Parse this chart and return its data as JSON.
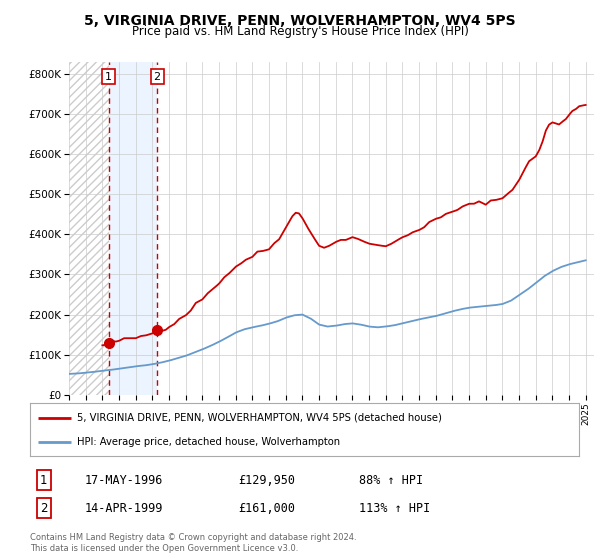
{
  "title": "5, VIRGINIA DRIVE, PENN, WOLVERHAMPTON, WV4 5PS",
  "subtitle": "Price paid vs. HM Land Registry's House Price Index (HPI)",
  "legend_line1": "5, VIRGINIA DRIVE, PENN, WOLVERHAMPTON, WV4 5PS (detached house)",
  "legend_line2": "HPI: Average price, detached house, Wolverhampton",
  "sale1_label": "1",
  "sale1_date": "17-MAY-1996",
  "sale1_price": "£129,950",
  "sale1_hpi": "88% ↑ HPI",
  "sale1_year": 1996.38,
  "sale1_value": 129950,
  "sale2_label": "2",
  "sale2_date": "14-APR-1999",
  "sale2_price": "£161,000",
  "sale2_hpi": "113% ↑ HPI",
  "sale2_year": 1999.29,
  "sale2_value": 161000,
  "footer1": "Contains HM Land Registry data © Crown copyright and database right 2024.",
  "footer2": "This data is licensed under the Open Government Licence v3.0.",
  "red_color": "#cc0000",
  "blue_color": "#6699cc",
  "background_color": "#ffffff",
  "grid_color": "#cccccc",
  "xlim_min": 1994.0,
  "xlim_max": 2025.5,
  "ylim_min": 0,
  "ylim_max": 830000,
  "hpi_years": [
    1994,
    1994.5,
    1995,
    1995.5,
    1996,
    1996.5,
    1997,
    1997.5,
    1998,
    1998.5,
    1999,
    1999.5,
    2000,
    2000.5,
    2001,
    2001.5,
    2002,
    2002.5,
    2003,
    2003.5,
    2004,
    2004.5,
    2005,
    2005.5,
    2006,
    2006.5,
    2007,
    2007.5,
    2008,
    2008.5,
    2009,
    2009.5,
    2010,
    2010.5,
    2011,
    2011.5,
    2012,
    2012.5,
    2013,
    2013.5,
    2014,
    2014.5,
    2015,
    2015.5,
    2016,
    2016.5,
    2017,
    2017.5,
    2018,
    2018.5,
    2019,
    2019.5,
    2020,
    2020.5,
    2021,
    2021.5,
    2022,
    2022.5,
    2023,
    2023.5,
    2024,
    2024.5,
    2025
  ],
  "hpi_values": [
    52000,
    53000,
    55000,
    57000,
    60000,
    62000,
    65000,
    68000,
    71000,
    73000,
    76000,
    80000,
    85000,
    91000,
    97000,
    105000,
    113000,
    122000,
    132000,
    143000,
    155000,
    163000,
    168000,
    172000,
    177000,
    183000,
    192000,
    198000,
    200000,
    190000,
    175000,
    170000,
    172000,
    176000,
    178000,
    175000,
    170000,
    168000,
    170000,
    173000,
    178000,
    183000,
    188000,
    192000,
    196000,
    202000,
    208000,
    213000,
    217000,
    219000,
    221000,
    223000,
    226000,
    234000,
    248000,
    262000,
    278000,
    295000,
    308000,
    318000,
    325000,
    330000,
    335000
  ],
  "prop_years": [
    1996.0,
    1996.2,
    1996.38,
    1996.5,
    1996.8,
    1997.0,
    1997.3,
    1997.6,
    1998.0,
    1998.3,
    1998.6,
    1999.0,
    1999.29,
    1999.5,
    1999.8,
    2000.0,
    2000.3,
    2000.6,
    2001.0,
    2001.3,
    2001.6,
    2002.0,
    2002.3,
    2002.6,
    2003.0,
    2003.3,
    2003.6,
    2004.0,
    2004.3,
    2004.6,
    2005.0,
    2005.3,
    2005.6,
    2006.0,
    2006.3,
    2006.6,
    2007.0,
    2007.2,
    2007.4,
    2007.6,
    2007.8,
    2008.0,
    2008.3,
    2008.6,
    2009.0,
    2009.3,
    2009.6,
    2010.0,
    2010.3,
    2010.6,
    2011.0,
    2011.3,
    2011.6,
    2012.0,
    2012.3,
    2012.6,
    2013.0,
    2013.3,
    2013.6,
    2014.0,
    2014.3,
    2014.6,
    2015.0,
    2015.3,
    2015.6,
    2016.0,
    2016.3,
    2016.6,
    2017.0,
    2017.3,
    2017.6,
    2018.0,
    2018.3,
    2018.6,
    2019.0,
    2019.3,
    2019.6,
    2020.0,
    2020.3,
    2020.6,
    2021.0,
    2021.3,
    2021.6,
    2022.0,
    2022.2,
    2022.4,
    2022.6,
    2022.8,
    2023.0,
    2023.2,
    2023.4,
    2023.6,
    2023.8,
    2024.0,
    2024.2,
    2024.4,
    2024.6,
    2024.8,
    2025.0
  ],
  "prop_values": [
    122000,
    125000,
    129950,
    131000,
    133000,
    135000,
    137000,
    139000,
    142000,
    145000,
    149000,
    154000,
    161000,
    163000,
    166000,
    170000,
    178000,
    188000,
    200000,
    213000,
    225000,
    238000,
    252000,
    266000,
    278000,
    292000,
    305000,
    318000,
    328000,
    337000,
    345000,
    352000,
    358000,
    365000,
    375000,
    390000,
    415000,
    435000,
    448000,
    453000,
    450000,
    440000,
    418000,
    398000,
    375000,
    368000,
    372000,
    378000,
    385000,
    390000,
    392000,
    390000,
    385000,
    375000,
    372000,
    370000,
    372000,
    376000,
    382000,
    390000,
    398000,
    405000,
    413000,
    420000,
    428000,
    435000,
    442000,
    448000,
    455000,
    462000,
    468000,
    472000,
    476000,
    478000,
    480000,
    482000,
    485000,
    490000,
    500000,
    515000,
    535000,
    558000,
    578000,
    595000,
    610000,
    630000,
    655000,
    672000,
    680000,
    675000,
    673000,
    678000,
    688000,
    698000,
    708000,
    715000,
    718000,
    720000,
    722000
  ]
}
